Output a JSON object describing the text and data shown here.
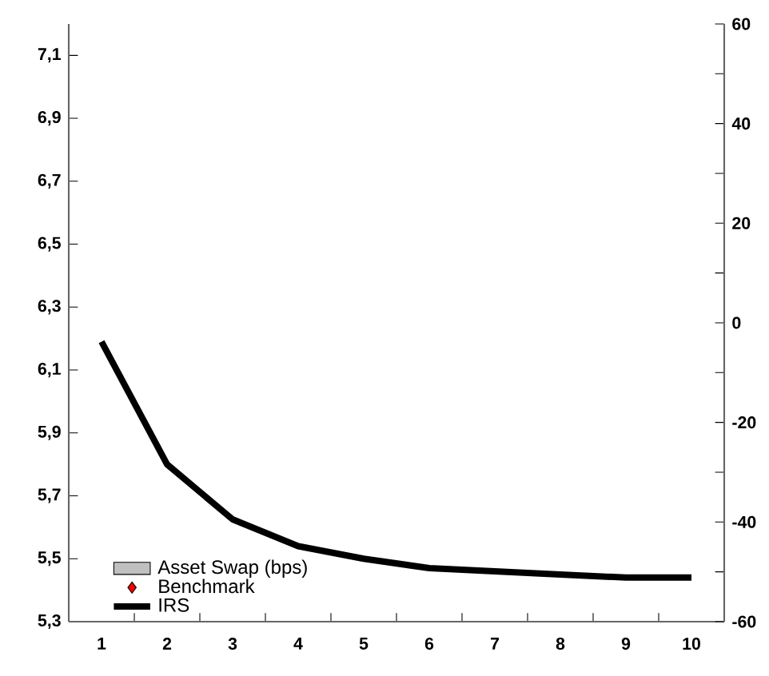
{
  "chart_data": {
    "type": "line",
    "categories": [
      "1",
      "2",
      "3",
      "4",
      "5",
      "6",
      "7",
      "8",
      "9",
      "10"
    ],
    "series": [
      {
        "name": "Asset Swap (bps)",
        "type": "bar",
        "color": "#c0c0c0",
        "values": [
          null,
          null,
          null,
          null,
          null,
          null,
          null,
          null,
          null,
          null
        ]
      },
      {
        "name": "Benchmark",
        "type": "scatter",
        "marker": "diamond",
        "color": "#ff0000",
        "values": [
          null,
          null,
          null,
          null,
          null,
          null,
          null,
          null,
          null,
          null
        ]
      },
      {
        "name": "IRS",
        "color": "#000000",
        "values": [
          6.19,
          5.8,
          5.625,
          5.54,
          5.5,
          5.47,
          5.46,
          5.45,
          5.44,
          5.44
        ]
      }
    ],
    "ylim": [
      5.3,
      7.2
    ],
    "yticks": [
      {
        "value": 5.3,
        "label": "5,3"
      },
      {
        "value": 5.5,
        "label": "5,5"
      },
      {
        "value": 5.7,
        "label": "5,7"
      },
      {
        "value": 5.9,
        "label": "5,9"
      },
      {
        "value": 6.1,
        "label": "6,1"
      },
      {
        "value": 6.3,
        "label": "6,3"
      },
      {
        "value": 6.5,
        "label": "6,5"
      },
      {
        "value": 6.7,
        "label": "6,7"
      },
      {
        "value": 6.9,
        "label": "6,9"
      },
      {
        "value": 7.1,
        "label": "7,1"
      }
    ],
    "y2lim": [
      -60,
      60
    ],
    "y2ticks": [
      -60,
      {
        "value": -50,
        "label": null
      },
      -40,
      {
        "value": -30,
        "label": null
      },
      -20,
      {
        "value": -10,
        "label": null
      },
      0,
      {
        "value": 10,
        "label": null
      },
      20,
      {
        "value": 30,
        "label": null
      },
      40,
      {
        "value": 50,
        "label": null
      },
      60
    ],
    "grid": false,
    "legend": "bottom left"
  }
}
